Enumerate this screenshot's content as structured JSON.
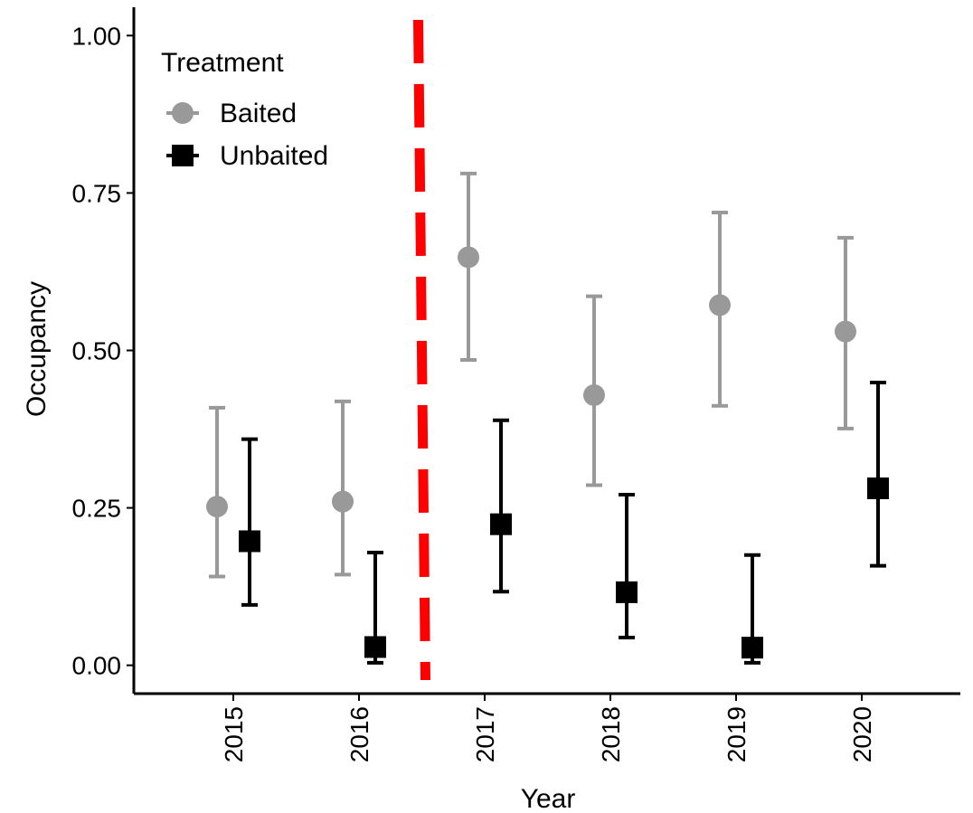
{
  "chart_data": {
    "type": "scatter",
    "title": "",
    "xlabel": "Year",
    "ylabel": "Occupancy",
    "categories": [
      "2015",
      "2016",
      "2017",
      "2018",
      "2019",
      "2020"
    ],
    "ylim": [
      -0.045,
      1.045
    ],
    "yticks": [
      "0.00",
      "0.25",
      "0.50",
      "0.75",
      "1.00"
    ],
    "legend": {
      "title": "Treatment",
      "position": "top-left"
    },
    "grid": false,
    "reference_line": {
      "x_between": [
        "2016",
        "2017"
      ],
      "style": "dashed",
      "color": "#ff0000"
    },
    "series": [
      {
        "name": "Baited",
        "marker": "circle",
        "color": "#999999",
        "values": [
          0.252,
          0.26,
          0.648,
          0.429,
          0.572,
          0.53
        ],
        "lower": [
          0.141,
          0.144,
          0.485,
          0.286,
          0.412,
          0.376
        ],
        "upper": [
          0.409,
          0.419,
          0.781,
          0.586,
          0.719,
          0.679
        ]
      },
      {
        "name": "Unbaited",
        "marker": "square",
        "color": "#000000",
        "values": [
          0.197,
          0.029,
          0.224,
          0.116,
          0.028,
          0.281
        ],
        "lower": [
          0.096,
          0.004,
          0.117,
          0.044,
          0.004,
          0.158
        ],
        "upper": [
          0.359,
          0.179,
          0.389,
          0.271,
          0.175,
          0.449
        ]
      }
    ]
  }
}
